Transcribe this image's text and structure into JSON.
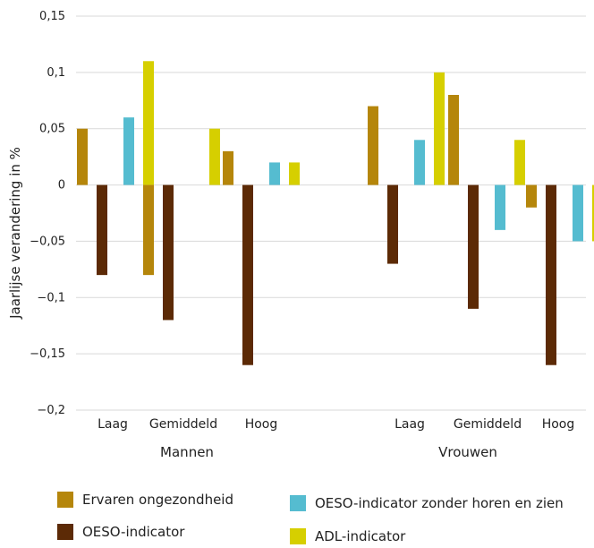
{
  "chart_data": {
    "type": "bar",
    "ylabel": "Jaarlijse verandering in %",
    "ylim": [
      -0.2,
      0.15
    ],
    "yticks": [
      {
        "value": 0.15,
        "label": "0,15"
      },
      {
        "value": 0.1,
        "label": "0,1"
      },
      {
        "value": 0.05,
        "label": "0,05"
      },
      {
        "value": 0,
        "label": "0"
      },
      {
        "value": -0.05,
        "label": "-0,05"
      },
      {
        "value": -0.1,
        "label": "-0,1"
      },
      {
        "value": -0.15,
        "label": "-0,15"
      },
      {
        "value": -0.2,
        "label": "-0,2"
      }
    ],
    "grid": true,
    "groups": [
      "Mannen",
      "Vrouwen"
    ],
    "categories": [
      "Laag",
      "Gemiddeld",
      "Hoog"
    ],
    "legend_position": "bottom",
    "series": [
      {
        "name": "Ervaren ongezondheid",
        "color": "#b5860b",
        "values": {
          "Mannen": [
            0.05,
            -0.08,
            0.03
          ],
          "Vrouwen": [
            0.07,
            0.08,
            -0.02
          ]
        }
      },
      {
        "name": "OESO-indicator",
        "color": "#5c2a06",
        "values": {
          "Mannen": [
            -0.08,
            -0.12,
            -0.16
          ],
          "Vrouwen": [
            -0.07,
            -0.11,
            -0.16
          ]
        }
      },
      {
        "name": "OESO-indicator zonder horen en zien",
        "color": "#55bcd0",
        "values": {
          "Mannen": [
            0.06,
            0,
            0.02
          ],
          "Vrouwen": [
            0.04,
            -0.04,
            -0.05
          ]
        }
      },
      {
        "name": "ADL-indicator",
        "color": "#d6cf00",
        "values": {
          "Mannen": [
            0.11,
            0.05,
            0.02
          ],
          "Vrouwen": [
            0.1,
            0.04,
            -0.05
          ]
        }
      }
    ]
  },
  "legend": {
    "items": [
      {
        "label": "Ervaren ongezondheid",
        "color": "#b5860b"
      },
      {
        "label": "OESO-indicator",
        "color": "#5c2a06"
      },
      {
        "label": "OESO-indicator zonder horen en zien",
        "color": "#55bcd0"
      },
      {
        "label": "ADL-indicator",
        "color": "#d6cf00"
      }
    ]
  }
}
